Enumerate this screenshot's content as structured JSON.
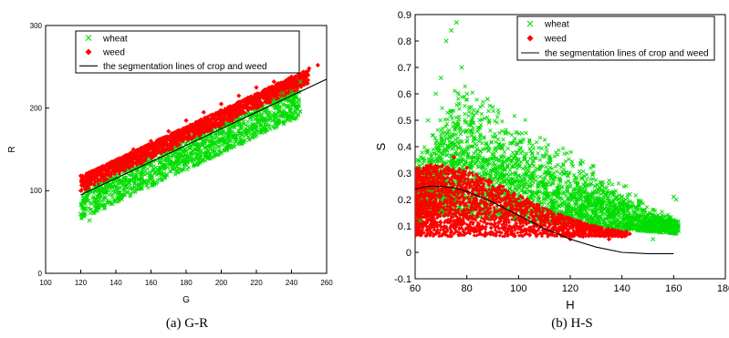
{
  "chart_data": [
    {
      "type": "scatter",
      "title": "",
      "caption": "(a)  G-R",
      "xlabel": "G",
      "ylabel": "R",
      "xlim": [
        100,
        260
      ],
      "ylim": [
        0,
        300
      ],
      "xticks": [
        100,
        120,
        140,
        160,
        180,
        200,
        220,
        240,
        260
      ],
      "yticks": [
        0,
        100,
        200,
        300
      ],
      "grid": false,
      "legend_position": "top-left",
      "legend_entries": [
        "wheat",
        "weed",
        "the segmentation lines of crop and weed"
      ],
      "series": [
        {
          "name": "wheat",
          "marker": "x",
          "color": "#00dd00",
          "description": "Dense band spanning G 120-245; R ranges roughly 65-235, lying mostly below the segmentation line",
          "points": [
            [
              120,
              72
            ],
            [
              122,
              85
            ],
            [
              125,
              64
            ],
            [
              128,
              90
            ],
            [
              130,
              96
            ],
            [
              135,
              98
            ],
            [
              140,
              88
            ],
            [
              145,
              110
            ],
            [
              150,
              115
            ],
            [
              155,
              108
            ],
            [
              160,
              130
            ],
            [
              165,
              128
            ],
            [
              170,
              140
            ],
            [
              175,
              138
            ],
            [
              180,
              148
            ],
            [
              185,
              150
            ],
            [
              190,
              160
            ],
            [
              195,
              160
            ],
            [
              200,
              170
            ],
            [
              205,
              175
            ],
            [
              210,
              180
            ],
            [
              215,
              178
            ],
            [
              220,
              195
            ],
            [
              225,
              200
            ],
            [
              230,
              210
            ],
            [
              235,
              218
            ],
            [
              240,
              220
            ],
            [
              245,
              232
            ]
          ]
        },
        {
          "name": "weed",
          "marker": "diamond",
          "color": "#ff0000",
          "description": "Dense band spanning G 120-255; R ranges roughly 95-252, lying mostly above the segmentation line",
          "points": [
            [
              120,
              100
            ],
            [
              120,
              118
            ],
            [
              125,
              110
            ],
            [
              130,
              125
            ],
            [
              135,
              120
            ],
            [
              140,
              137
            ],
            [
              145,
              132
            ],
            [
              150,
              150
            ],
            [
              155,
              146
            ],
            [
              160,
              160
            ],
            [
              165,
              158
            ],
            [
              170,
              172
            ],
            [
              175,
              168
            ],
            [
              180,
              185
            ],
            [
              185,
              180
            ],
            [
              190,
              195
            ],
            [
              195,
              192
            ],
            [
              200,
              205
            ],
            [
              205,
              202
            ],
            [
              210,
              215
            ],
            [
              215,
              212
            ],
            [
              220,
              225
            ],
            [
              225,
              222
            ],
            [
              230,
              232
            ],
            [
              235,
              228
            ],
            [
              240,
              238
            ],
            [
              245,
              240
            ],
            [
              250,
              248
            ],
            [
              255,
              252
            ]
          ]
        },
        {
          "name": "the segmentation lines of crop and weed",
          "type": "line",
          "color": "#000000",
          "x": [
            120,
            260
          ],
          "y": [
            95,
            235
          ]
        }
      ]
    },
    {
      "type": "scatter",
      "title": "",
      "caption": "(b)  H-S",
      "xlabel": "H",
      "ylabel": "S",
      "xlim": [
        60,
        180
      ],
      "ylim": [
        -0.1,
        0.9
      ],
      "xticks": [
        60,
        80,
        100,
        120,
        140,
        160,
        180
      ],
      "yticks": [
        -0.1,
        0,
        0.1,
        0.2,
        0.3,
        0.4,
        0.5,
        0.6,
        0.7,
        0.8,
        0.9
      ],
      "grid": false,
      "legend_position": "top-right",
      "legend_entries": [
        "wheat",
        "weed",
        "the segmentation lines of crop and weed"
      ],
      "series": [
        {
          "name": "wheat",
          "marker": "x",
          "color": "#00dd00",
          "description": "Large cloud spanning H 60-162; S peaks near 0.87 around H 75 and tapers to about 0.05-0.2 by H 140-160",
          "points": [
            [
              62,
              0.12
            ],
            [
              65,
              0.5
            ],
            [
              68,
              0.6
            ],
            [
              70,
              0.66
            ],
            [
              72,
              0.8
            ],
            [
              74,
              0.84
            ],
            [
              76,
              0.87
            ],
            [
              78,
              0.7
            ],
            [
              80,
              0.6
            ],
            [
              85,
              0.5
            ],
            [
              88,
              0.58
            ],
            [
              90,
              0.55
            ],
            [
              95,
              0.45
            ],
            [
              100,
              0.35
            ],
            [
              105,
              0.3
            ],
            [
              110,
              0.26
            ],
            [
              115,
              0.22
            ],
            [
              120,
              0.2
            ],
            [
              125,
              0.18
            ],
            [
              130,
              0.17
            ],
            [
              135,
              0.15
            ],
            [
              140,
              0.2
            ],
            [
              143,
              0.22
            ],
            [
              148,
              0.16
            ],
            [
              152,
              0.05
            ],
            [
              160,
              0.21
            ],
            [
              161,
              0.2
            ]
          ]
        },
        {
          "name": "weed",
          "marker": "diamond",
          "color": "#ff0000",
          "description": "Dense cluster spanning H 60-145; S mostly 0.05-0.3, reaching about 0.36 near H 75",
          "points": [
            [
              60,
              0.08
            ],
            [
              62,
              0.3
            ],
            [
              64,
              0.26
            ],
            [
              66,
              0.33
            ],
            [
              70,
              0.3
            ],
            [
              75,
              0.36
            ],
            [
              78,
              0.28
            ],
            [
              80,
              0.32
            ],
            [
              85,
              0.28
            ],
            [
              90,
              0.22
            ],
            [
              95,
              0.2
            ],
            [
              100,
              0.18
            ],
            [
              105,
              0.15
            ],
            [
              110,
              0.12
            ],
            [
              115,
              0.08
            ],
            [
              120,
              0.05
            ],
            [
              125,
              0.06
            ],
            [
              130,
              0.08
            ],
            [
              135,
              0.05
            ],
            [
              140,
              0.06
            ],
            [
              143,
              0.07
            ]
          ]
        },
        {
          "name": "the segmentation lines of crop and weed",
          "type": "line",
          "color": "#000000",
          "x": [
            60,
            65,
            70,
            75,
            80,
            90,
            100,
            110,
            120,
            130,
            140,
            150,
            155,
            160
          ],
          "y": [
            0.24,
            0.25,
            0.25,
            0.245,
            0.23,
            0.19,
            0.14,
            0.09,
            0.05,
            0.02,
            0.0,
            -0.005,
            -0.005,
            -0.005
          ]
        }
      ]
    }
  ]
}
